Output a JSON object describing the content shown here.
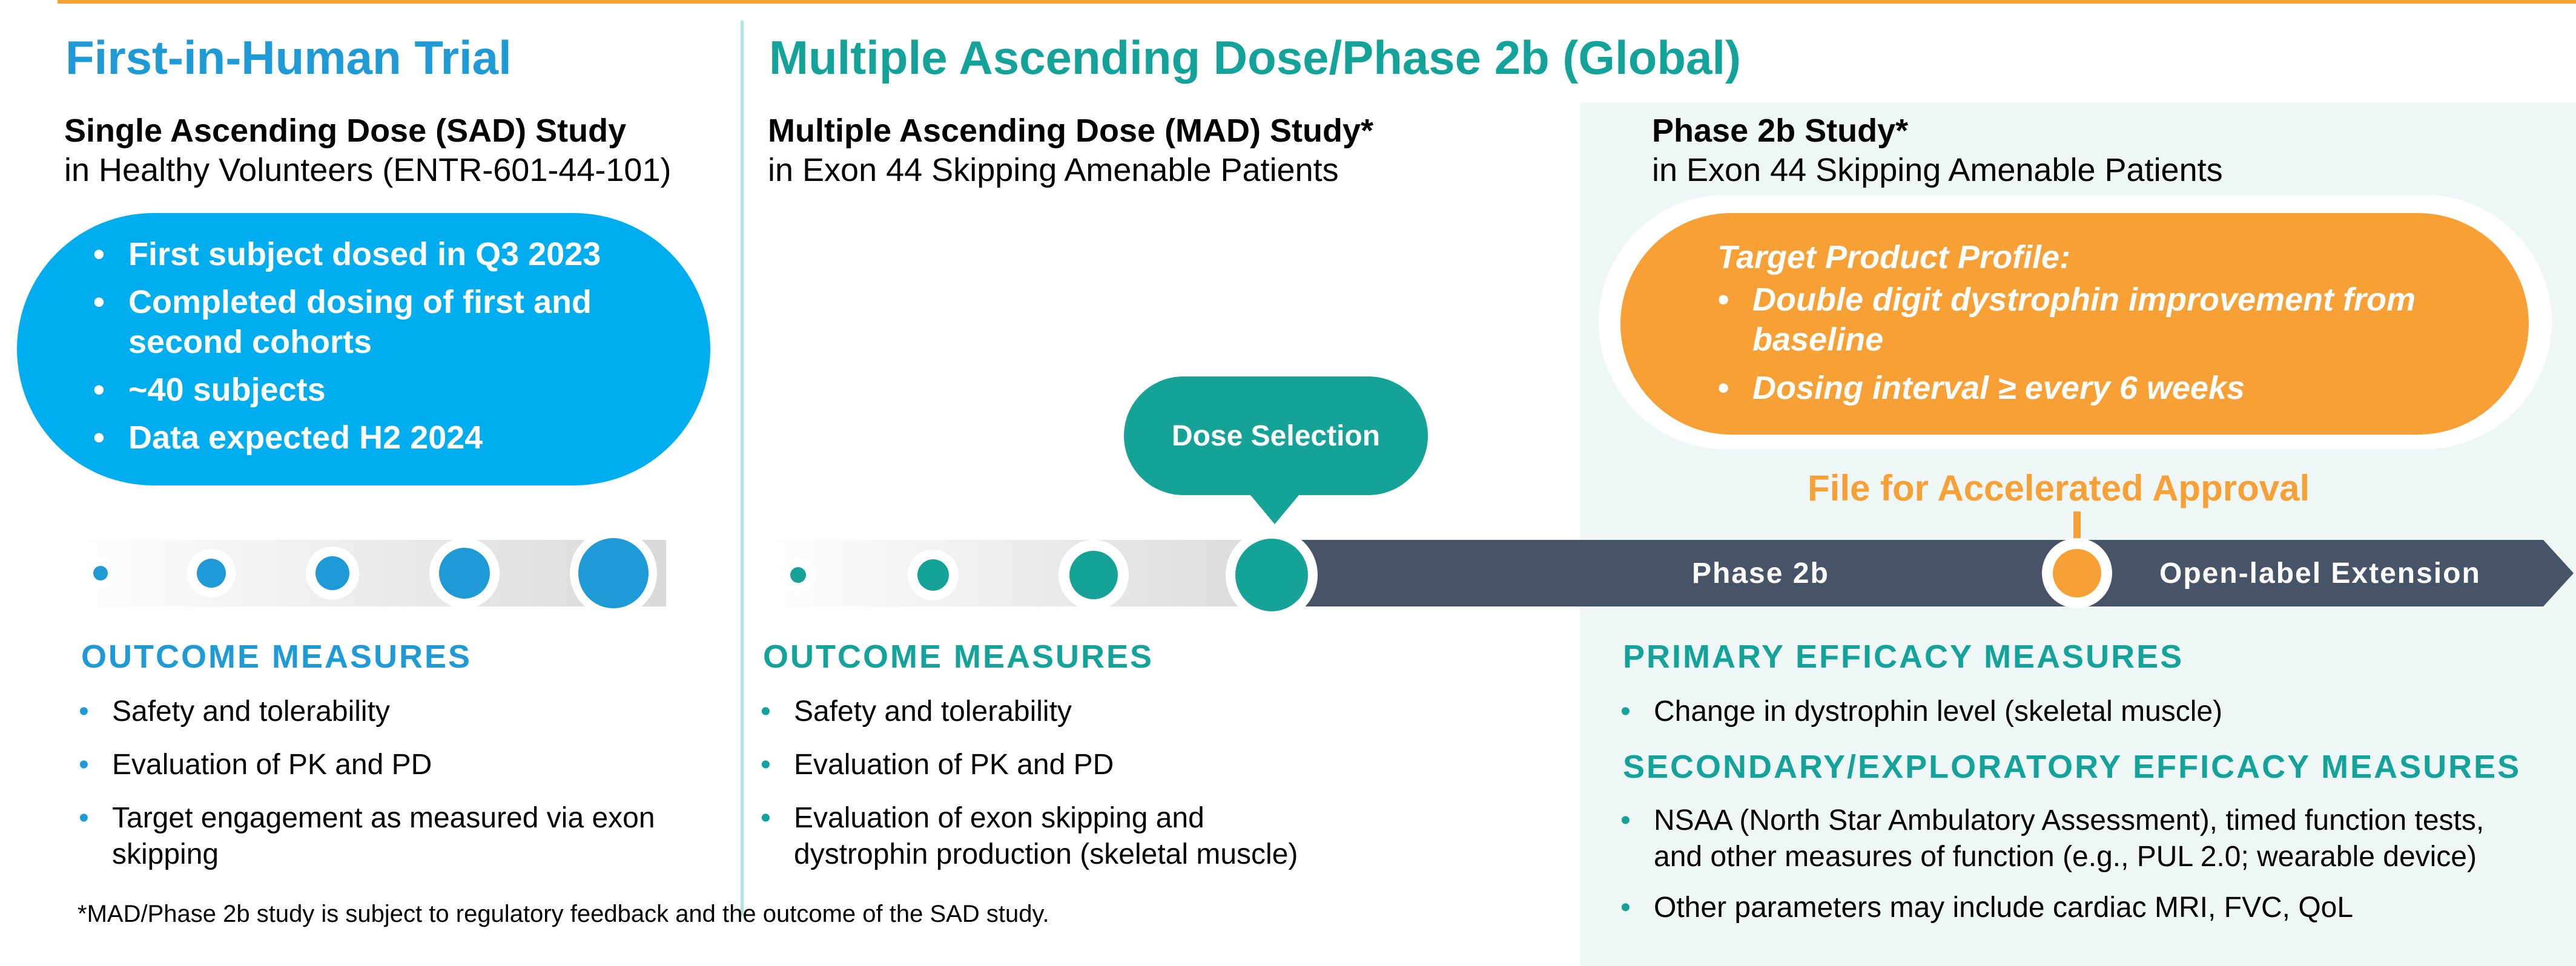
{
  "header": {
    "left_title": "First-in-Human Trial",
    "right_title": "Multiple Ascending Dose/Phase 2b (Global)"
  },
  "sad": {
    "title": "Single Ascending Dose (SAD) Study",
    "subtitle": "in Healthy Volunteers (ENTR-601-44-101)",
    "bullets": [
      "First subject dosed in Q3 2023",
      "Completed dosing of first and second cohorts",
      "~40 subjects",
      "Data expected H2 2024"
    ],
    "outcome_heading": "OUTCOME MEASURES",
    "outcomes": [
      "Safety and tolerability",
      "Evaluation of PK and PD",
      "Target engagement as measured via exon skipping"
    ]
  },
  "mad": {
    "title": "Multiple Ascending Dose (MAD) Study*",
    "subtitle": "in Exon 44 Skipping Amenable Patients",
    "dose_callout": "Dose Selection",
    "outcome_heading": "OUTCOME MEASURES",
    "outcomes": [
      "Safety and tolerability",
      "Evaluation of PK and PD",
      "Evaluation of exon skipping and dystrophin production (skeletal muscle)"
    ]
  },
  "phase2b": {
    "title": "Phase 2b Study*",
    "subtitle": "in Exon 44 Skipping Amenable Patients",
    "tpp_heading": "Target Product Profile:",
    "tpp_bullets": [
      "Double digit dystrophin improvement from baseline",
      "Dosing interval ≥ every 6 weeks"
    ],
    "approval_label": "File for Accelerated Approval",
    "arrow_label_1": "Phase 2b",
    "arrow_label_2": "Open-label Extension",
    "primary_heading": "PRIMARY EFFICACY MEASURES",
    "primary": [
      "Change in dystrophin level (skeletal muscle)"
    ],
    "secondary_heading": "SECONDARY/EXPLORATORY EFFICACY MEASURES",
    "secondary": [
      "NSAA (North Star Ambulatory Assessment), timed function tests, and other measures of function (e.g., PUL 2.0; wearable device)",
      "Other parameters may include cardiac MRI, FVC, QoL"
    ]
  },
  "footnote": "*MAD/Phase 2b study is subject to regulatory feedback and the outcome of the SAD study.",
  "colors": {
    "sad_blue": "#00aeef",
    "mad_teal": "#15a297",
    "phase2b_navy": "#475468",
    "accent_orange": "#f7a035"
  }
}
